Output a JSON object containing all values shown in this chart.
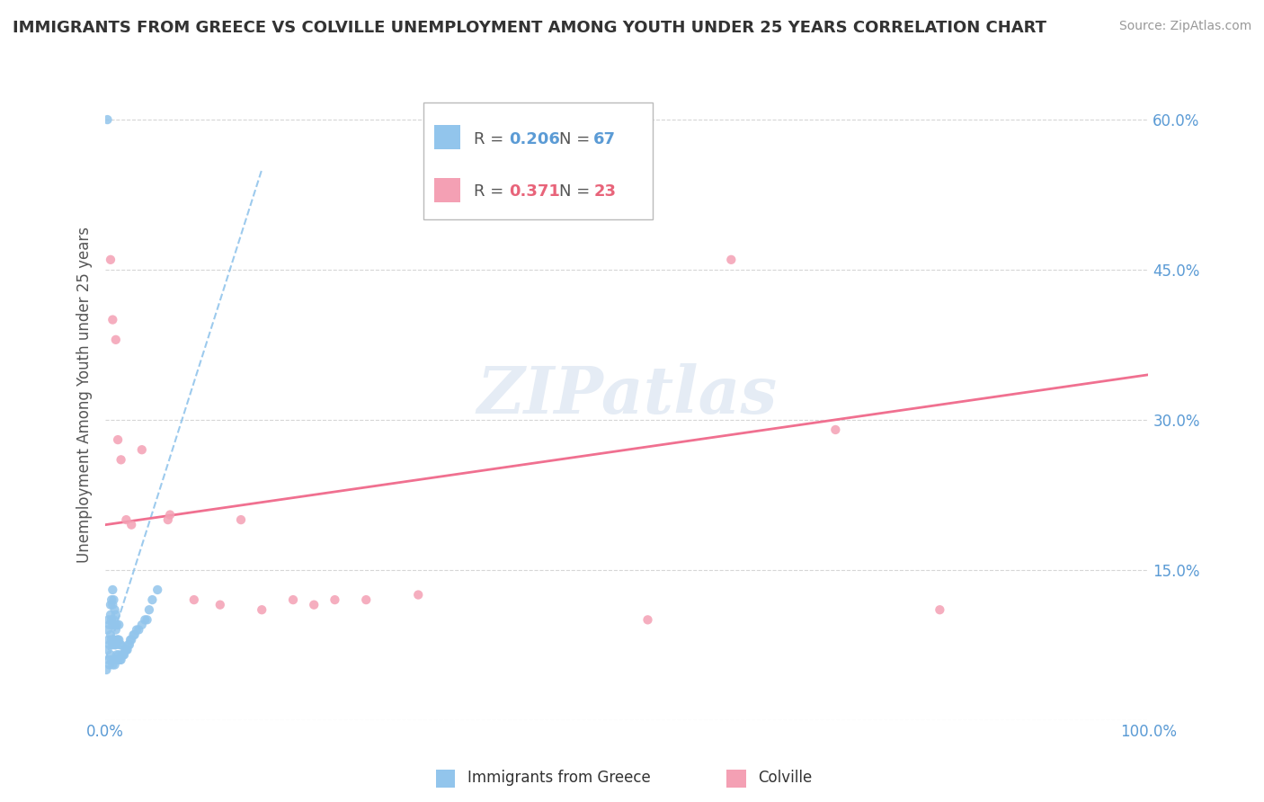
{
  "title": "IMMIGRANTS FROM GREECE VS COLVILLE UNEMPLOYMENT AMONG YOUTH UNDER 25 YEARS CORRELATION CHART",
  "source": "Source: ZipAtlas.com",
  "ylabel": "Unemployment Among Youth under 25 years",
  "xlim": [
    0,
    1.0
  ],
  "ylim": [
    0,
    0.65
  ],
  "yticks": [
    0.0,
    0.15,
    0.3,
    0.45,
    0.6
  ],
  "yticklabels": [
    "",
    "15.0%",
    "30.0%",
    "45.0%",
    "60.0%"
  ],
  "xtick_positions": [
    0.0,
    1.0
  ],
  "xticklabels": [
    "0.0%",
    "100.0%"
  ],
  "legend_r1": "0.206",
  "legend_n1": "67",
  "legend_r2": "0.371",
  "legend_n2": "23",
  "blue_color": "#92C5EC",
  "pink_color": "#F4A0B4",
  "blue_trend_color": "#92C5EC",
  "pink_trend_color": "#F07090",
  "watermark_color": "#E5ECF5",
  "greece_scatter_x": [
    0.001,
    0.002,
    0.002,
    0.003,
    0.003,
    0.003,
    0.004,
    0.004,
    0.004,
    0.005,
    0.005,
    0.005,
    0.005,
    0.006,
    0.006,
    0.006,
    0.006,
    0.007,
    0.007,
    0.007,
    0.007,
    0.007,
    0.008,
    0.008,
    0.008,
    0.008,
    0.009,
    0.009,
    0.009,
    0.009,
    0.01,
    0.01,
    0.01,
    0.01,
    0.011,
    0.011,
    0.011,
    0.012,
    0.012,
    0.013,
    0.013,
    0.013,
    0.014,
    0.014,
    0.015,
    0.015,
    0.016,
    0.017,
    0.018,
    0.019,
    0.02,
    0.021,
    0.022,
    0.023,
    0.024,
    0.025,
    0.027,
    0.028,
    0.03,
    0.032,
    0.035,
    0.038,
    0.04,
    0.042,
    0.045,
    0.05,
    0.002
  ],
  "greece_scatter_y": [
    0.05,
    0.07,
    0.09,
    0.06,
    0.08,
    0.1,
    0.055,
    0.075,
    0.095,
    0.065,
    0.085,
    0.105,
    0.115,
    0.06,
    0.08,
    0.1,
    0.12,
    0.055,
    0.075,
    0.095,
    0.115,
    0.13,
    0.06,
    0.08,
    0.1,
    0.12,
    0.055,
    0.075,
    0.095,
    0.11,
    0.06,
    0.075,
    0.09,
    0.105,
    0.065,
    0.08,
    0.095,
    0.06,
    0.08,
    0.065,
    0.08,
    0.095,
    0.06,
    0.075,
    0.06,
    0.075,
    0.065,
    0.065,
    0.065,
    0.07,
    0.07,
    0.07,
    0.075,
    0.075,
    0.08,
    0.08,
    0.085,
    0.085,
    0.09,
    0.09,
    0.095,
    0.1,
    0.1,
    0.11,
    0.12,
    0.13,
    0.6
  ],
  "colville_scatter_x": [
    0.005,
    0.007,
    0.01,
    0.012,
    0.015,
    0.02,
    0.025,
    0.035,
    0.06,
    0.062,
    0.085,
    0.11,
    0.13,
    0.15,
    0.18,
    0.2,
    0.22,
    0.25,
    0.3,
    0.52,
    0.6,
    0.7,
    0.8
  ],
  "colville_scatter_y": [
    0.46,
    0.4,
    0.38,
    0.28,
    0.26,
    0.2,
    0.195,
    0.27,
    0.2,
    0.205,
    0.12,
    0.115,
    0.2,
    0.11,
    0.12,
    0.115,
    0.12,
    0.12,
    0.125,
    0.1,
    0.46,
    0.29,
    0.11
  ],
  "greece_trend_x": [
    0.0,
    0.15
  ],
  "greece_trend_y": [
    0.06,
    0.55
  ],
  "colville_trend_x": [
    0.0,
    1.0
  ],
  "colville_trend_y": [
    0.195,
    0.345
  ]
}
